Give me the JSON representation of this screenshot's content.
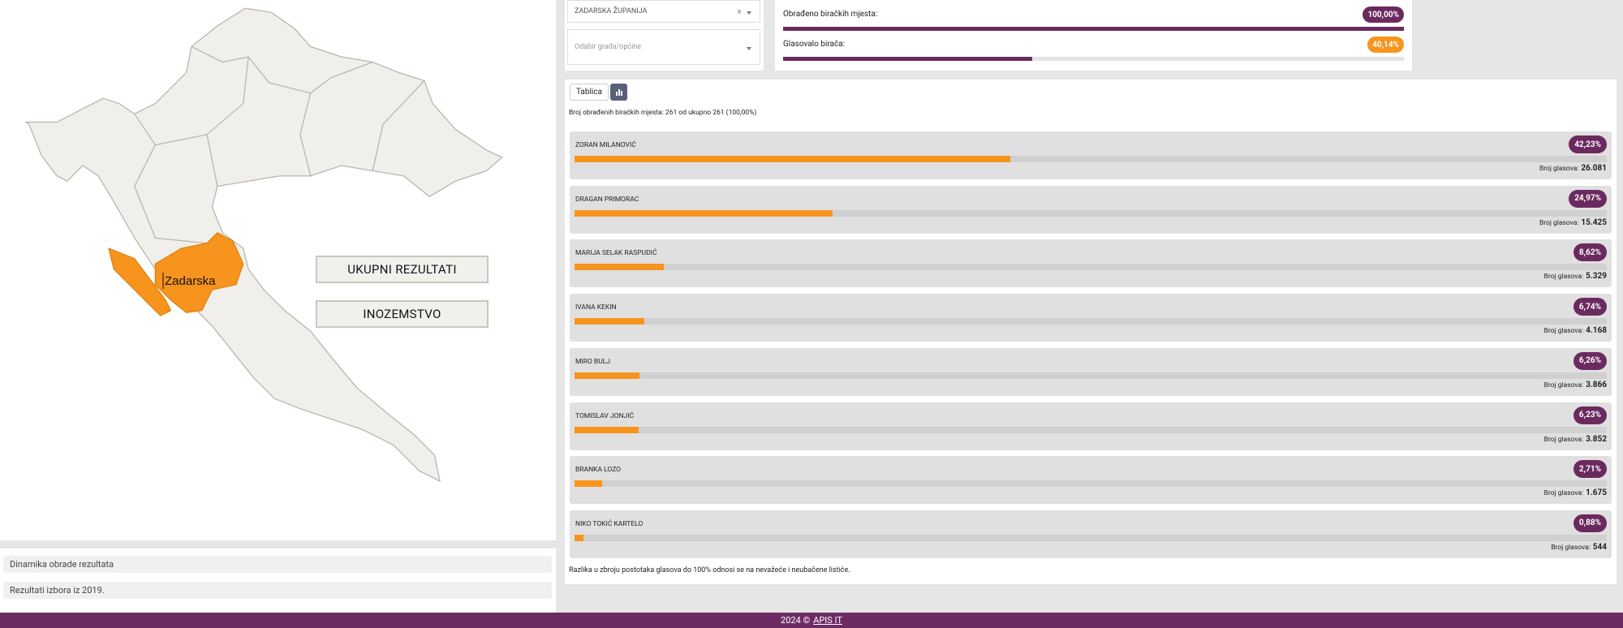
{
  "map": {
    "region_label": "Zadarska",
    "buttons": [
      "UKUPNI REZULTATI",
      "INOZEMSTVO"
    ]
  },
  "accordion": [
    "Dinamika obrade rezultata",
    "Rezultati izbora iz 2019."
  ],
  "filters": {
    "county": "ZADARSKA ŽUPANIJA",
    "clear": "×",
    "city_placeholder": "Odabir grada/općine"
  },
  "stats": [
    {
      "label": "Obrađeno biračkih mjesta:",
      "value": 100.0,
      "value_label": "100,00%"
    },
    {
      "label": "Glasovalo birača:",
      "value": 40.14,
      "value_label": "40,14%"
    }
  ],
  "tabs": {
    "table": "Tablica"
  },
  "summary": "Broj obrađenih biračkih mjesta: 261 od ukupno 261 (100,00%)",
  "votes_caption": "Broj glasova:",
  "candidates": [
    {
      "name": "ZORAN MILANOVIĆ",
      "percent": 42.23,
      "percent_label": "42,23%",
      "votes": "26.081"
    },
    {
      "name": "DRAGAN PRIMORAC",
      "percent": 24.97,
      "percent_label": "24,97%",
      "votes": "15.425"
    },
    {
      "name": "MARIJA SELAK RASPUDIĆ",
      "percent": 8.62,
      "percent_label": "8,62%",
      "votes": "5.329"
    },
    {
      "name": "IVANA KEKIN",
      "percent": 6.74,
      "percent_label": "6,74%",
      "votes": "4.168"
    },
    {
      "name": "MIRO BULJ",
      "percent": 6.26,
      "percent_label": "6,26%",
      "votes": "3.866"
    },
    {
      "name": "TOMISLAV JONJIĆ",
      "percent": 6.23,
      "percent_label": "6,23%",
      "votes": "3.852"
    },
    {
      "name": "BRANKA LOZO",
      "percent": 2.71,
      "percent_label": "2,71%",
      "votes": "1.675"
    },
    {
      "name": "NIKO TOKIĆ KARTELO",
      "percent": 0.88,
      "percent_label": "0,88%",
      "votes": "544"
    }
  ],
  "note": "Razlika u zbroju postotaka glasova do 100% odnosi se na nevažeće i neubačene listiće.",
  "footer": {
    "text": "2024 ©",
    "link": "APIS IT"
  }
}
